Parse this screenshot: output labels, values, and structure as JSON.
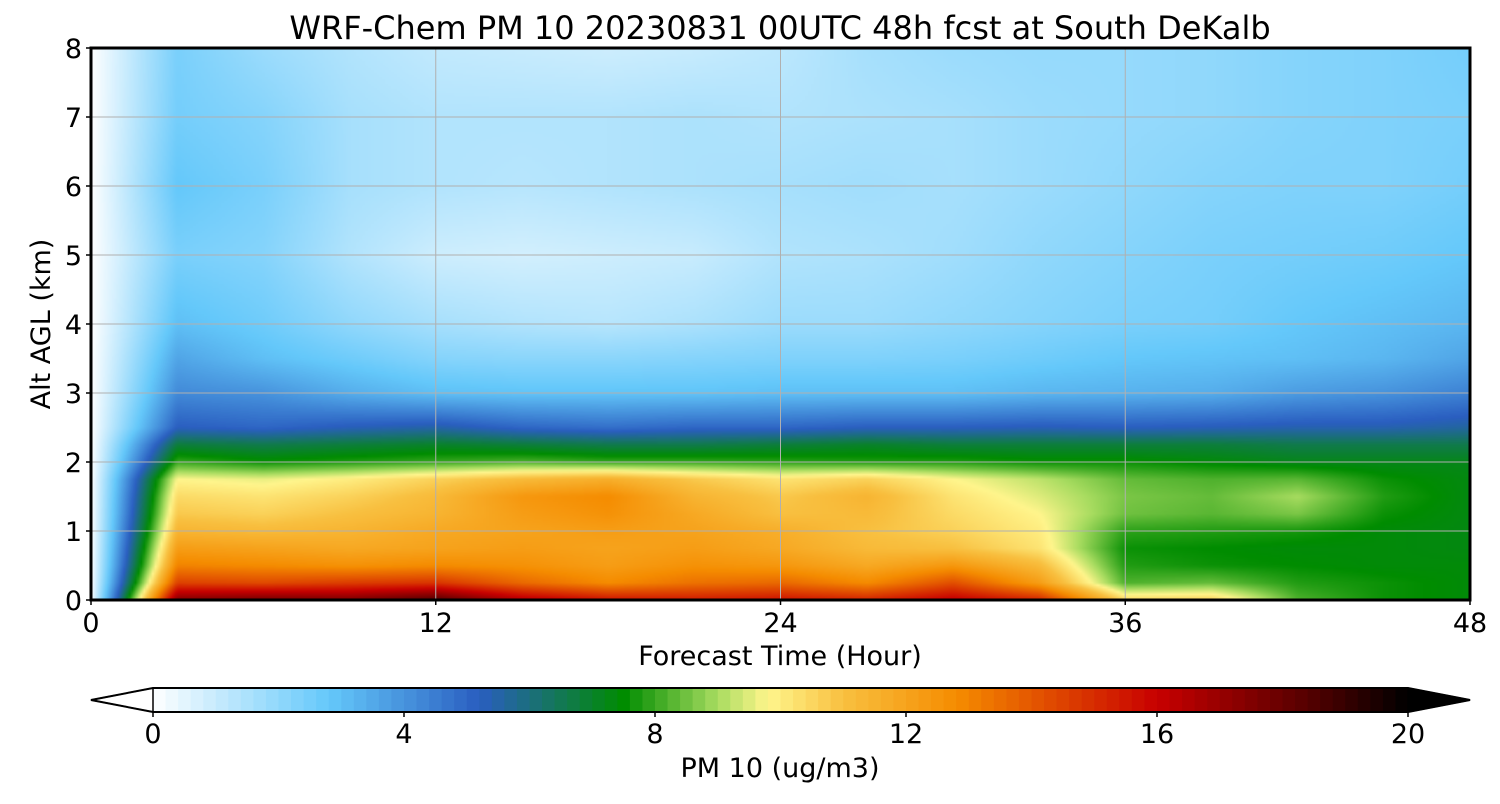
{
  "chart_data": {
    "type": "heatmap",
    "title": "WRF-Chem PM 10  20230831 00UTC 48h fcst at South DeKalb",
    "xlabel": "Forecast Time (Hour)",
    "ylabel": "Alt AGL (km)",
    "xlim": [
      0,
      48
    ],
    "ylim": [
      0,
      8
    ],
    "x_ticks": [
      0,
      12,
      24,
      36,
      48
    ],
    "y_ticks": [
      0,
      1,
      2,
      3,
      4,
      5,
      6,
      7,
      8
    ],
    "grid": true,
    "x_hours": [
      0,
      3,
      6,
      9,
      12,
      15,
      18,
      21,
      24,
      27,
      30,
      33,
      36,
      39,
      42,
      45,
      48
    ],
    "z_km": [
      0,
      0.25,
      0.5,
      0.75,
      1,
      1.25,
      1.5,
      1.75,
      2,
      2.25,
      2.5,
      3,
      3.5,
      4,
      5,
      6,
      7,
      8
    ],
    "values": [
      [
        0,
        17.5,
        17.8,
        17.6,
        18.5,
        16.5,
        15.6,
        15.4,
        15.6,
        15.2,
        16.2,
        15.2,
        10.5,
        10.6,
        8.2,
        7.6,
        7.4
      ],
      [
        0,
        14.5,
        14.3,
        14.6,
        14.8,
        13.6,
        12.8,
        13.4,
        13.6,
        12.8,
        14.2,
        12.2,
        8.2,
        8.4,
        7.8,
        7.6,
        7.4
      ],
      [
        0,
        13.0,
        12.8,
        12.6,
        12.8,
        12.6,
        12.2,
        12.6,
        12.4,
        11.8,
        12.4,
        11.2,
        7.8,
        7.6,
        7.5,
        7.4,
        7.4
      ],
      [
        0,
        12.2,
        12.0,
        11.8,
        12.0,
        12.2,
        12.0,
        12.2,
        11.8,
        11.2,
        11.0,
        10.2,
        7.6,
        7.5,
        7.4,
        7.4,
        7.3
      ],
      [
        0,
        11.4,
        11.2,
        11.4,
        11.8,
        12.0,
        12.2,
        12.0,
        11.6,
        11.0,
        10.6,
        10.0,
        7.9,
        7.8,
        7.7,
        7.4,
        7.3
      ],
      [
        0,
        10.8,
        10.6,
        11.0,
        11.4,
        12.2,
        12.6,
        11.8,
        11.0,
        11.2,
        10.4,
        9.8,
        8.5,
        8.3,
        8.6,
        7.6,
        7.3
      ],
      [
        0,
        10.4,
        10.2,
        10.6,
        11.2,
        12.4,
        12.8,
        11.4,
        10.8,
        11.4,
        10.2,
        9.5,
        8.6,
        8.4,
        9.0,
        7.8,
        7.3
      ],
      [
        0,
        9.8,
        9.6,
        10.0,
        10.6,
        11.2,
        11.6,
        10.8,
        10.2,
        10.6,
        9.8,
        9.2,
        8.4,
        8.2,
        8.3,
        7.6,
        7.3
      ],
      [
        0,
        8.0,
        7.6,
        7.8,
        8.0,
        8.2,
        8.0,
        8.0,
        7.9,
        7.8,
        7.8,
        7.6,
        7.6,
        7.4,
        7.2,
        7.2,
        7.2
      ],
      [
        0,
        6.8,
        6.6,
        6.8,
        7.0,
        6.8,
        6.6,
        6.6,
        6.8,
        7.0,
        6.8,
        6.8,
        6.8,
        6.8,
        6.6,
        6.6,
        6.6
      ],
      [
        0,
        5.2,
        5.0,
        5.3,
        5.5,
        5.0,
        4.8,
        5.0,
        5.0,
        5.2,
        5.2,
        5.3,
        5.2,
        5.3,
        5.4,
        5.4,
        5.6
      ],
      [
        0,
        4.2,
        4.0,
        3.4,
        3.0,
        2.9,
        2.9,
        2.9,
        3.0,
        3.0,
        3.0,
        3.2,
        3.3,
        3.4,
        3.8,
        4.0,
        4.4
      ],
      [
        0,
        3.6,
        3.0,
        2.6,
        2.2,
        2.1,
        2.1,
        2.2,
        2.3,
        2.3,
        2.4,
        2.6,
        2.8,
        2.9,
        3.0,
        3.2,
        3.6
      ],
      [
        0,
        3.0,
        2.6,
        2.0,
        1.6,
        1.4,
        1.3,
        1.5,
        1.8,
        1.8,
        2.0,
        2.2,
        2.4,
        2.5,
        2.8,
        3.0,
        3.2
      ],
      [
        0,
        2.4,
        2.2,
        1.4,
        0.9,
        0.8,
        0.9,
        1.0,
        1.4,
        1.5,
        1.7,
        2.0,
        2.2,
        2.4,
        2.5,
        2.6,
        2.8
      ],
      [
        0,
        2.8,
        2.4,
        1.6,
        1.4,
        1.3,
        1.4,
        1.5,
        1.6,
        1.7,
        1.6,
        1.8,
        2.0,
        2.2,
        2.3,
        2.3,
        2.5
      ],
      [
        0,
        2.5,
        2.2,
        1.6,
        1.4,
        1.4,
        1.4,
        1.5,
        1.4,
        1.5,
        1.6,
        1.8,
        1.9,
        2.0,
        2.2,
        2.3,
        2.4
      ],
      [
        0,
        2.4,
        1.8,
        1.4,
        1.1,
        1.0,
        0.9,
        1.0,
        1.2,
        1.6,
        1.8,
        1.9,
        1.9,
        2.0,
        2.2,
        2.3,
        2.5
      ]
    ],
    "colorbar": {
      "label": "PM 10  (ug/m3)",
      "range": [
        0,
        20
      ],
      "ticks": [
        0,
        4,
        8,
        12,
        16,
        20
      ],
      "extend": "both",
      "colors": [
        "#ffffff",
        "#64c8fa",
        "#2a5ec0",
        "#008c00",
        "#a8dc60",
        "#fff58c",
        "#f8c040",
        "#f58c00",
        "#c80000",
        "#500000",
        "#000000"
      ],
      "color_stops": [
        0,
        2.8,
        5.2,
        7.5,
        9.0,
        9.8,
        11.0,
        12.8,
        16.0,
        18.5,
        20
      ]
    }
  }
}
